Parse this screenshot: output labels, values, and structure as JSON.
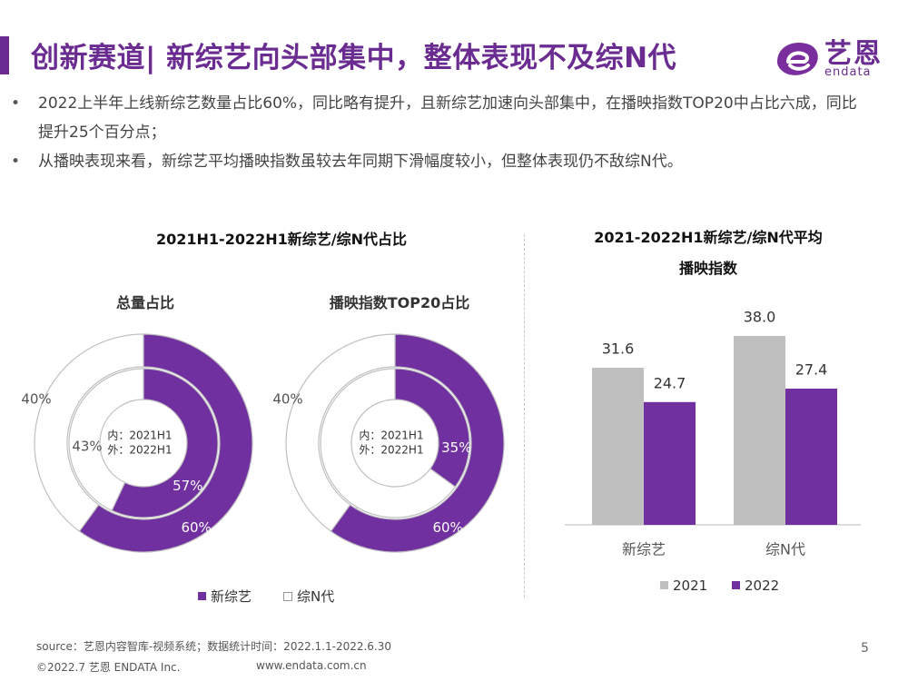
{
  "header": {
    "title": "创新赛道| 新综艺向头部集中，整体表现不及综N代",
    "logo_cn": "艺恩",
    "logo_en": "endata"
  },
  "bullets": [
    "2022上半年上线新综艺数量占比60%，同比略有提升，且新综艺加速向头部集中，在播映指数TOP20中占比六成，同比提升25个百分点；",
    "从播映表现来看，新综艺平均播映指数虽较去年同期下滑幅度较小，但整体表现仍不敌综N代。"
  ],
  "colors": {
    "purple": "#7030a0",
    "gray": "#bfbfbf",
    "dark_purple": "#6b2c91"
  },
  "chart_data": [
    {
      "type": "pie",
      "subtype": "double-donut",
      "title": "2021H1-2022H1新综艺/综N代占比",
      "subtitle": "总量占比",
      "center_labels": [
        "内：2021H1",
        "外：2022H1"
      ],
      "categories": [
        "新综艺",
        "综N代"
      ],
      "series": [
        {
          "name": "2021H1",
          "ring": "inner",
          "values": [
            57,
            43
          ]
        },
        {
          "name": "2022H1",
          "ring": "outer",
          "values": [
            60,
            40
          ]
        }
      ]
    },
    {
      "type": "pie",
      "subtype": "double-donut",
      "title": "2021H1-2022H1新综艺/综N代占比",
      "subtitle": "播映指数TOP20占比",
      "center_labels": [
        "内：2021H1",
        "外：2022H1"
      ],
      "categories": [
        "新综艺",
        "综N代"
      ],
      "series": [
        {
          "name": "2021H1",
          "ring": "inner",
          "values": [
            35,
            65
          ]
        },
        {
          "name": "2022H1",
          "ring": "outer",
          "values": [
            60,
            40
          ]
        }
      ]
    },
    {
      "type": "bar",
      "title": "2021-2022H1新综艺/综N代平均播映指数",
      "title_lines": [
        "2021-2022H1新综艺/综N代平均",
        "播映指数"
      ],
      "categories": [
        "新综艺",
        "综N代"
      ],
      "series": [
        {
          "name": "2021",
          "values": [
            31.6,
            38.0
          ]
        },
        {
          "name": "2022",
          "values": [
            24.7,
            27.4
          ]
        }
      ],
      "ylim": [
        0,
        40
      ]
    }
  ],
  "legend_left": [
    "新综艺",
    "综N代"
  ],
  "legend_right": [
    "2021",
    "2022"
  ],
  "footer": {
    "source": "source：艺恩内容智库-视频系统；数据统计时间：2022.1.1-2022.6.30",
    "copyright": "©2022.7 艺恩 ENDATA Inc.",
    "website": "www.endata.com.cn",
    "page": "5"
  }
}
